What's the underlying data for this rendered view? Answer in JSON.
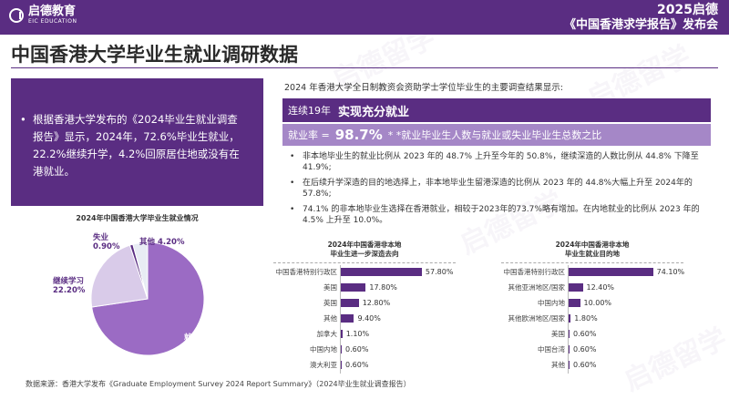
{
  "header": {
    "logo_text": "启德教育",
    "logo_sub": "EIC EDUCATION",
    "event_year": "2025启德",
    "event_name": "《中国香港求学报告》发布会"
  },
  "page_title": "中国香港大学毕业生就业调研数据",
  "watermark_text": "启德留学",
  "left_panel": {
    "bullet": "根据香港大学发布的《2024毕业生就业调查报告》显示，2024年，72.6%毕业生就业，22.2%继续升学，4.2%回原居住地或没有在港就业。"
  },
  "survey_note": "2024 年香港大学全日制教资会资助学士学位毕业生的主要调查结果显示:",
  "highlight1": {
    "small": "连续19年",
    "big": "实现充分就业"
  },
  "highlight2": {
    "small": "就业率 =",
    "big": "98.7%",
    "note": "* *就业毕业生人数与就业或失业毕业生总数之比"
  },
  "right_bullets": [
    "非本地毕业生的就业比例从 2023 年的 48.7% 上升至今年的 50.8%，继续深造的人数比例从 44.8% 下降至 41.9%;",
    "在后续升学深造的目的地选择上，非本地毕业生留港深造的比例从 2023 年的 44.8%大幅上升至 2024年的 57.8%;",
    "74.1% 的非本地毕业生选择在香港就业，相较于2023年的73.7%略有增加。在内地就业的比例从 2023 年的 4.5% 上升至 10.0%。"
  ],
  "source": "数据来源：香港大学发布《Graduate Employment Survey 2024 Report Summary》（2024毕业生就业调查报告）",
  "chart_data": [
    {
      "type": "pie",
      "title": "2024年中国香港大学毕业生就业情况",
      "labels": [
        "就业",
        "继续学习",
        "失业",
        "其他"
      ],
      "values": [
        72.6,
        22.2,
        0.9,
        4.2
      ],
      "value_labels": [
        "72.60%",
        "22.20%",
        "0.90%",
        "4.20%"
      ],
      "colors": [
        "#9b6bc4",
        "#d9cbe9",
        "#5a2d82",
        "#e8ecf4"
      ]
    },
    {
      "type": "bar",
      "orientation": "horizontal",
      "title_line1": "2024年中国香港非本地",
      "title_line2": "毕业生进一步深造去向",
      "categories": [
        "中国香港特别行政区",
        "美国",
        "英国",
        "其他",
        "加拿大",
        "中国内地",
        "澳大利亚"
      ],
      "values": [
        57.8,
        17.8,
        12.8,
        9.4,
        1.1,
        0.6,
        0.6
      ],
      "value_labels": [
        "57.80%",
        "17.80%",
        "12.80%",
        "9.40%",
        "1.10%",
        "0.60%",
        "0.60%"
      ],
      "color": "#5a2d82"
    },
    {
      "type": "bar",
      "orientation": "horizontal",
      "title_line1": "2024年中国香港非本地",
      "title_line2": "毕业生就业目的地",
      "categories": [
        "中国香港特别行政区",
        "其他亚洲地区/国家",
        "中国内地",
        "其他欧洲地区/国家",
        "美国",
        "中国台湾",
        "其他"
      ],
      "values": [
        74.1,
        12.4,
        10.0,
        1.8,
        0.6,
        0.6,
        0.6
      ],
      "value_labels": [
        "74.10%",
        "12.40%",
        "10.00%",
        "1.80%",
        "0.60%",
        "0.60%",
        "0.60%"
      ],
      "color": "#5a2d82"
    }
  ]
}
